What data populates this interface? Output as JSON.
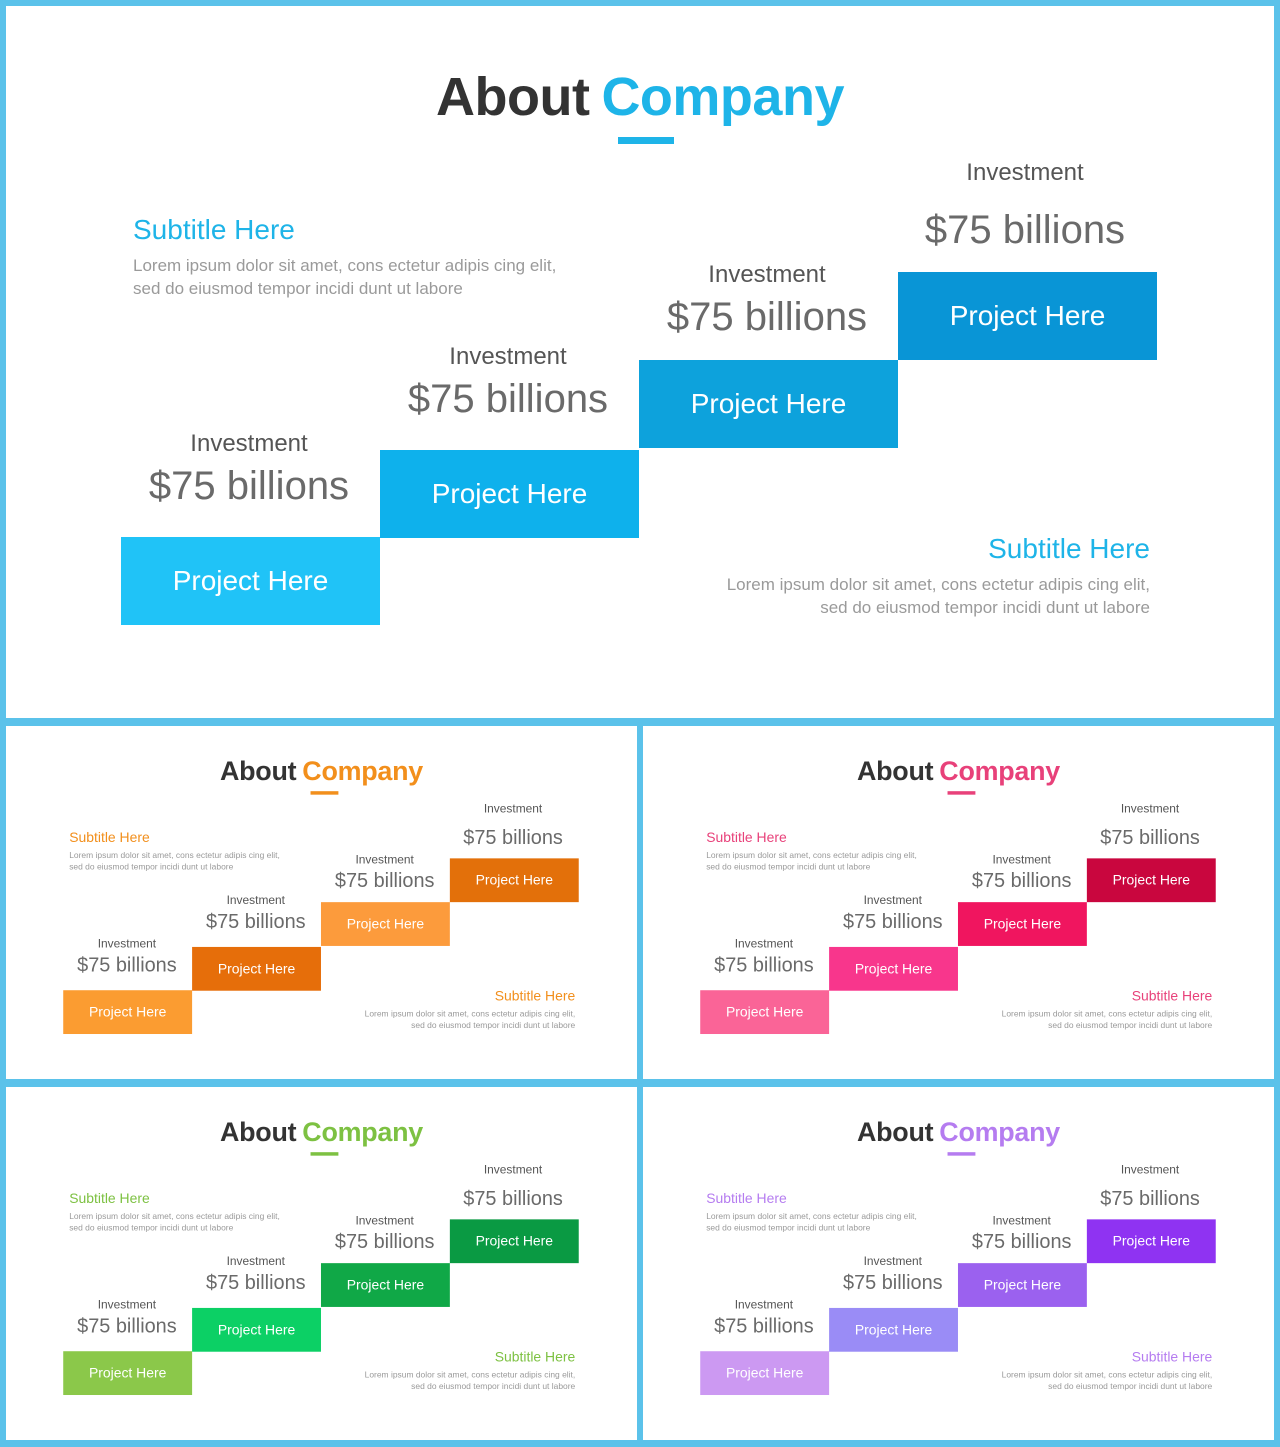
{
  "slides": [
    {
      "title_main": "About",
      "title_accent": "Company",
      "accent": "#1eb4e8",
      "subtitle_left": "Subtitle Here",
      "text_left": "Lorem ipsum dolor sit amet, cons ectetur adipis cing elit, sed do eiusmod tempor incidi dunt ut labore",
      "subtitle_right": "Subtitle Here",
      "text_right": "Lorem ipsum dolor sit amet, cons ectetur adipis cing elit, sed do eiusmod tempor incidi dunt ut labore",
      "steps": [
        {
          "label": "Investment",
          "value": "$75 billions",
          "project": "Project Here",
          "color": "#20c3f7"
        },
        {
          "label": "Investment",
          "value": "$75 billions",
          "project": "Project Here",
          "color": "#0eb1ec"
        },
        {
          "label": "Investment",
          "value": "$75 billions",
          "project": "Project Here",
          "color": "#0da2dc"
        },
        {
          "label": "Investment",
          "value": "$75 billions",
          "project": "Project Here",
          "color": "#0995d6"
        }
      ]
    },
    {
      "title_main": "About",
      "title_accent": "Company",
      "accent": "#f28f1c",
      "subtitle_left": "Subtitle Here",
      "text_left": "Lorem ipsum dolor sit amet, cons ectetur adipis cing elit, sed do eiusmod tempor incidi dunt ut labore",
      "subtitle_right": "Subtitle Here",
      "text_right": "Lorem ipsum dolor sit amet, cons ectetur adipis cing elit, sed do eiusmod tempor incidi dunt ut labore",
      "steps": [
        {
          "label": "Investment",
          "value": "$75 billions",
          "project": "Project Here",
          "color": "#fb9c31"
        },
        {
          "label": "Investment",
          "value": "$75 billions",
          "project": "Project Here",
          "color": "#e66e0a"
        },
        {
          "label": "Investment",
          "value": "$75 billions",
          "project": "Project Here",
          "color": "#fc9b3c"
        },
        {
          "label": "Investment",
          "value": "$75 billions",
          "project": "Project Here",
          "color": "#e3700a"
        }
      ]
    },
    {
      "title_main": "About",
      "title_accent": "Company",
      "accent": "#e8417a",
      "subtitle_left": "Subtitle Here",
      "text_left": "Lorem ipsum dolor sit amet, cons ectetur adipis cing elit, sed do eiusmod tempor incidi dunt ut labore",
      "subtitle_right": "Subtitle Here",
      "text_right": "Lorem ipsum dolor sit amet, cons ectetur adipis cing elit, sed do eiusmod tempor incidi dunt ut labore",
      "steps": [
        {
          "label": "Investment",
          "value": "$75 billions",
          "project": "Project Here",
          "color": "#fa6497"
        },
        {
          "label": "Investment",
          "value": "$75 billions",
          "project": "Project Here",
          "color": "#f8368c"
        },
        {
          "label": "Investment",
          "value": "$75 billions",
          "project": "Project Here",
          "color": "#f0155f"
        },
        {
          "label": "Investment",
          "value": "$75 billions",
          "project": "Project Here",
          "color": "#c9063e"
        }
      ]
    },
    {
      "title_main": "About",
      "title_accent": "Company",
      "accent": "#7dc142",
      "subtitle_left": "Subtitle Here",
      "text_left": "Lorem ipsum dolor sit amet, cons ectetur adipis cing elit, sed do eiusmod tempor incidi dunt ut labore",
      "subtitle_right": "Subtitle Here",
      "text_right": "Lorem ipsum dolor sit amet, cons ectetur adipis cing elit, sed do eiusmod tempor incidi dunt ut labore",
      "steps": [
        {
          "label": "Investment",
          "value": "$75 billions",
          "project": "Project Here",
          "color": "#8bc84a"
        },
        {
          "label": "Investment",
          "value": "$75 billions",
          "project": "Project Here",
          "color": "#0cd065"
        },
        {
          "label": "Investment",
          "value": "$75 billions",
          "project": "Project Here",
          "color": "#10a847"
        },
        {
          "label": "Investment",
          "value": "$75 billions",
          "project": "Project Here",
          "color": "#0a9a43"
        }
      ]
    },
    {
      "title_main": "About",
      "title_accent": "Company",
      "accent": "#b57cf0",
      "subtitle_left": "Subtitle Here",
      "text_left": "Lorem ipsum dolor sit amet, cons ectetur adipis cing elit, sed do eiusmod tempor incidi dunt ut labore",
      "subtitle_right": "Subtitle Here",
      "text_right": "Lorem ipsum dolor sit amet, cons ectetur adipis cing elit, sed do eiusmod tempor incidi dunt ut labore",
      "steps": [
        {
          "label": "Investment",
          "value": "$75 billions",
          "project": "Project Here",
          "color": "#cc99f2"
        },
        {
          "label": "Investment",
          "value": "$75 billions",
          "project": "Project Here",
          "color": "#9a8cf6"
        },
        {
          "label": "Investment",
          "value": "$75 billions",
          "project": "Project Here",
          "color": "#9b61ef"
        },
        {
          "label": "Investment",
          "value": "$75 billions",
          "project": "Project Here",
          "color": "#8f33f2"
        }
      ]
    }
  ]
}
